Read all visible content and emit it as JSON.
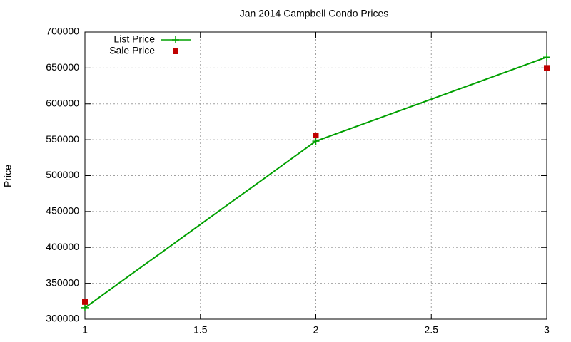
{
  "chart_data": {
    "type": "line",
    "title": "Jan 2014 Campbell Condo Prices",
    "y_label": "Price",
    "x": [
      1,
      2,
      3
    ],
    "series": [
      {
        "name": "List Price",
        "color": "#00a000",
        "style": "linespoints",
        "marker": "plus",
        "values": [
          316000,
          548000,
          665000
        ]
      },
      {
        "name": "Sale Price",
        "color": "#c00000",
        "style": "points",
        "marker": "square",
        "values": [
          324000,
          556000,
          650000
        ]
      }
    ],
    "xlim": [
      1,
      3
    ],
    "xticks": [
      1,
      1.5,
      2,
      2.5,
      3
    ],
    "ylim": [
      300000,
      700000
    ],
    "yticks": [
      300000,
      350000,
      400000,
      450000,
      500000,
      550000,
      600000,
      650000,
      700000
    ],
    "grid": true,
    "legend": "top-left"
  }
}
